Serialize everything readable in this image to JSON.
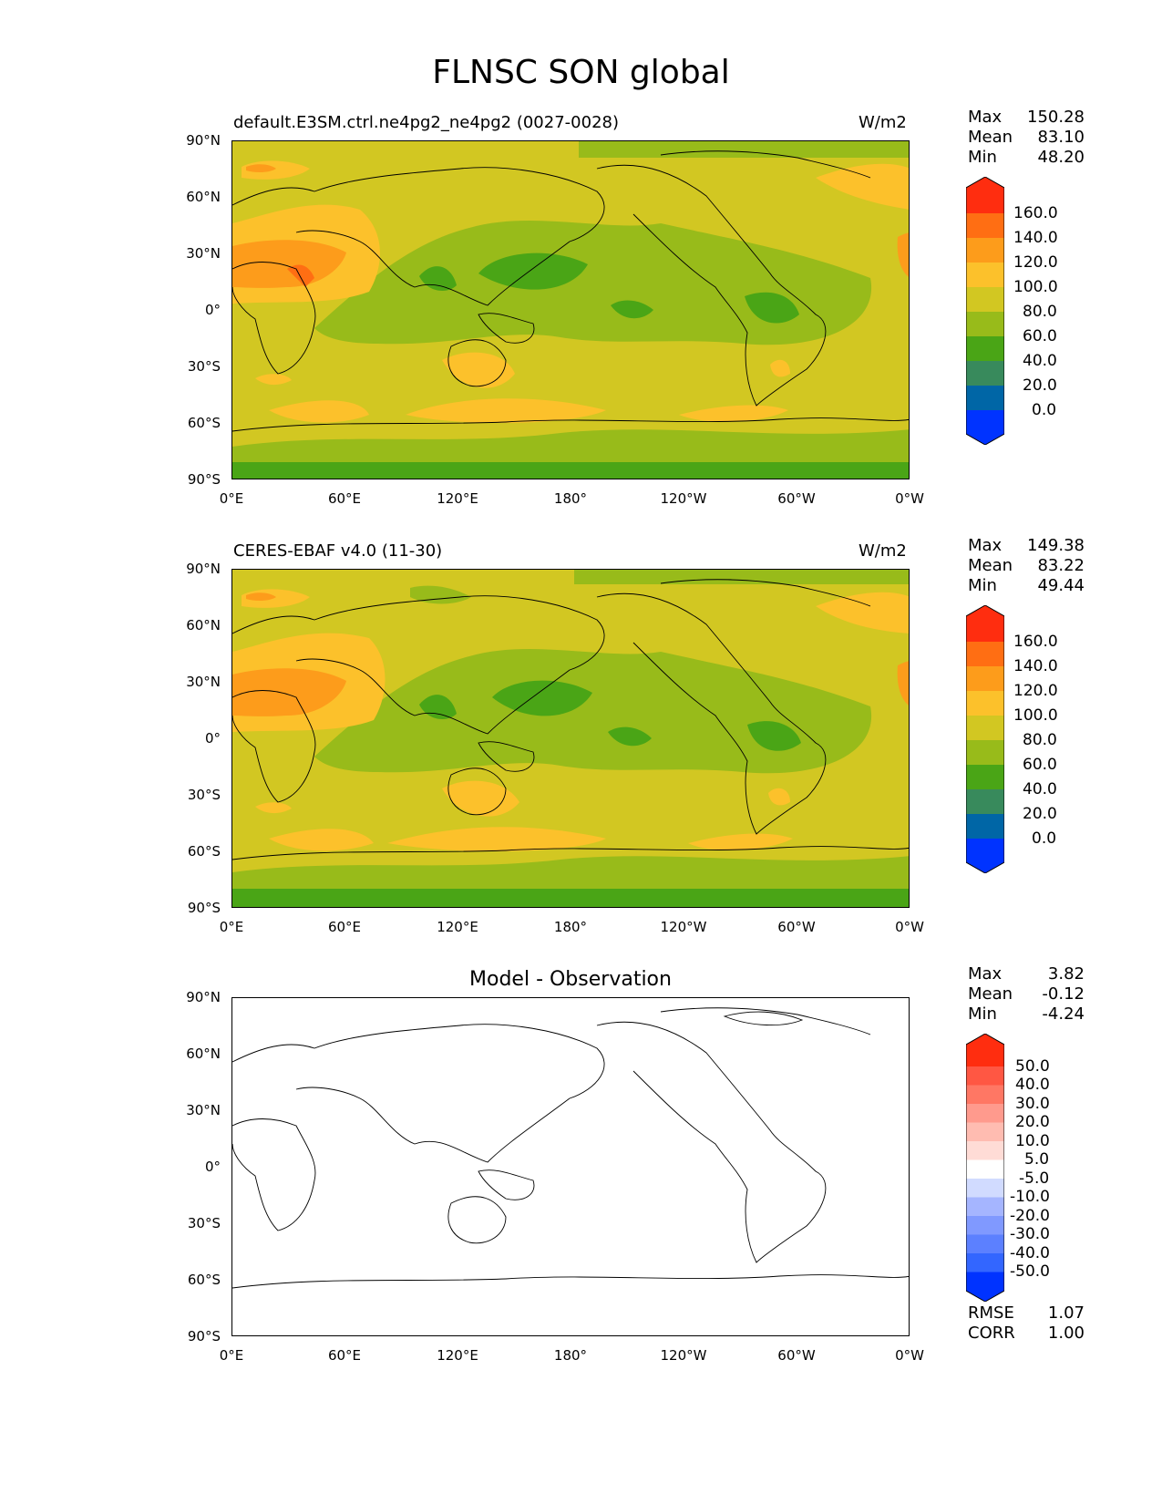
{
  "figure": {
    "title": "FLNSC SON global"
  },
  "axes": {
    "lat_ticks": [
      "90°N",
      "60°N",
      "30°N",
      "0°",
      "30°S",
      "60°S",
      "90°S"
    ],
    "lon_ticks": [
      "0°E",
      "60°E",
      "120°E",
      "180°",
      "120°W",
      "60°W",
      "0°W"
    ]
  },
  "colors": {
    "main_levels": [
      "#0033ff",
      "#0066a6",
      "#388a5c",
      "#4aa516",
      "#98bb1a",
      "#d2c722",
      "#fcc12b",
      "#fd9c1b",
      "#ff6e13",
      "#ff2d0f"
    ],
    "diff_levels": [
      "#0033ff",
      "#3366ff",
      "#5c80ff",
      "#8099ff",
      "#a5b5ff",
      "#d1dbff",
      "#ffffff",
      "#ffdcd6",
      "#ffbcb1",
      "#ff9a8d",
      "#ff7764",
      "#ff5743",
      "#ff2d0f"
    ]
  },
  "panels": [
    {
      "id": "model",
      "left_title": "default.E3SM.ctrl.ne4pg2_ne4pg2 (0027-0028)",
      "center_title": "",
      "units": "W/m2",
      "stats": {
        "max_label": "Max",
        "max": "150.28",
        "mean_label": "Mean",
        "mean": "83.10",
        "min_label": "Min",
        "min": "48.20"
      },
      "colorbar_labels": [
        "160.0",
        "140.0",
        "120.0",
        "100.0",
        "80.0",
        "60.0",
        "40.0",
        "20.0",
        "0.0"
      ]
    },
    {
      "id": "obs",
      "left_title": "CERES-EBAF v4.0 (11-30)",
      "center_title": "",
      "units": "W/m2",
      "stats": {
        "max_label": "Max",
        "max": "149.38",
        "mean_label": "Mean",
        "mean": "83.22",
        "min_label": "Min",
        "min": "49.44"
      },
      "colorbar_labels": [
        "160.0",
        "140.0",
        "120.0",
        "100.0",
        "80.0",
        "60.0",
        "40.0",
        "20.0",
        "0.0"
      ]
    },
    {
      "id": "diff",
      "left_title": "",
      "center_title": "Model - Observation",
      "units": "",
      "stats": {
        "max_label": "Max",
        "max": "3.82",
        "mean_label": "Mean",
        "mean": "-0.12",
        "min_label": "Min",
        "min": "-4.24"
      },
      "colorbar_labels": [
        "50.0",
        "40.0",
        "30.0",
        "20.0",
        "10.0",
        "5.0",
        "-5.0",
        "-10.0",
        "-20.0",
        "-30.0",
        "-40.0",
        "-50.0"
      ],
      "metrics": {
        "rmse_label": "RMSE",
        "rmse": "1.07",
        "corr_label": "CORR",
        "corr": "1.00"
      }
    }
  ]
}
